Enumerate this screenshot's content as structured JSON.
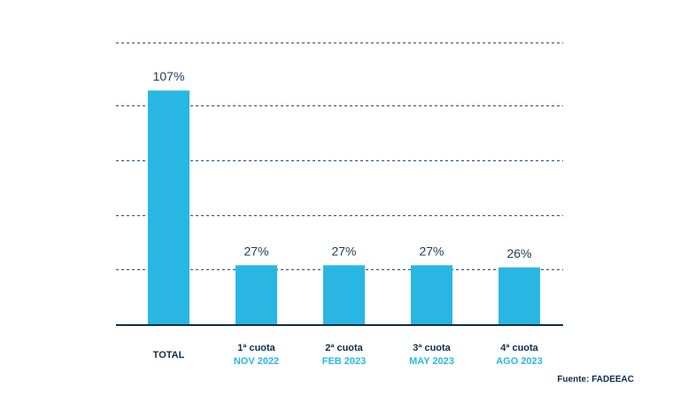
{
  "chart_data": {
    "type": "bar",
    "categories": [
      {
        "line1": "TOTAL",
        "line2": ""
      },
      {
        "line1": "1ª cuota",
        "line2": "NOV 2022"
      },
      {
        "line1": "2ª cuota",
        "line2": "FEB 2023"
      },
      {
        "line1": "3ª cuota",
        "line2": "MAY 2023"
      },
      {
        "line1": "4ª cuota",
        "line2": "AGO 2023"
      }
    ],
    "values": [
      107,
      27,
      27,
      27,
      26
    ],
    "value_labels": [
      "107%",
      "27%",
      "27%",
      "27%",
      "26%"
    ],
    "ylim": [
      0,
      129
    ],
    "gridlines": [
      25,
      50,
      75,
      100,
      129
    ],
    "grid": true,
    "bar_color": "#29b6e3",
    "secondary_label_color": "#29b6e3",
    "text_color": "#0f2e4d"
  },
  "source": "Fuente: FADEEAC"
}
